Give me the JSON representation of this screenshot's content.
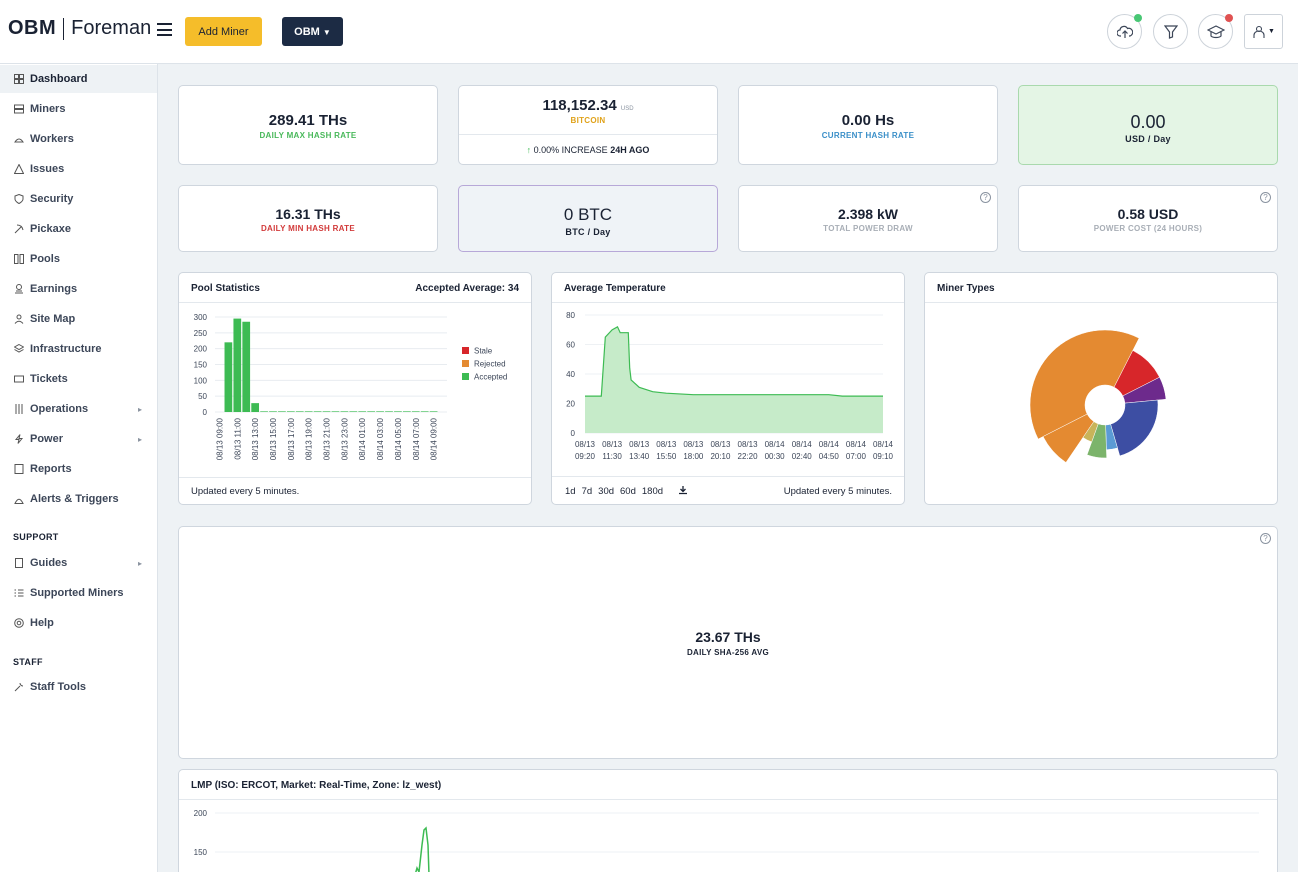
{
  "header": {
    "logo_left": "OBM",
    "logo_right": "Foreman",
    "add_miner": "Add Miner",
    "org_button": "OBM"
  },
  "colors": {
    "accent_yellow": "#f5bd2a",
    "navy": "#1c2b44",
    "green": "#3dbb53",
    "orange": "#e48a31",
    "red": "#d7262a",
    "purple": "#6d2a8c",
    "blue": "#3d4ea3"
  },
  "sidebar": {
    "items": [
      {
        "label": "Dashboard",
        "icon": "dashboard-icon"
      },
      {
        "label": "Miners",
        "icon": "server-icon"
      },
      {
        "label": "Workers",
        "icon": "workers-icon"
      },
      {
        "label": "Issues",
        "icon": "warning-icon"
      },
      {
        "label": "Security",
        "icon": "shield-icon"
      },
      {
        "label": "Pickaxe",
        "icon": "pickaxe-icon"
      },
      {
        "label": "Pools",
        "icon": "pools-icon"
      },
      {
        "label": "Earnings",
        "icon": "coins-icon"
      },
      {
        "label": "Site Map",
        "icon": "sitemap-icon"
      },
      {
        "label": "Infrastructure",
        "icon": "layers-icon"
      },
      {
        "label": "Tickets",
        "icon": "ticket-icon"
      },
      {
        "label": "Operations",
        "icon": "sliders-icon"
      },
      {
        "label": "Power",
        "icon": "bolt-icon"
      },
      {
        "label": "Reports",
        "icon": "report-icon"
      },
      {
        "label": "Alerts & Triggers",
        "icon": "alerts-icon"
      }
    ],
    "support_heading": "SUPPORT",
    "support_items": [
      {
        "label": "Guides",
        "icon": "book-icon"
      },
      {
        "label": "Supported Miners",
        "icon": "checklist-icon"
      },
      {
        "label": "Help",
        "icon": "lifebuoy-icon"
      }
    ],
    "staff_heading": "STAFF",
    "staff_items": [
      {
        "label": "Staff Tools",
        "icon": "tools-icon"
      }
    ]
  },
  "stats": {
    "max_hash": {
      "value": "289.41 THs",
      "label": "DAILY MAX HASH RATE"
    },
    "bitcoin": {
      "value": "118,152.34",
      "unit": "USD",
      "label": "BITCOIN",
      "change": "0.00% INCREASE",
      "period": "24H AGO"
    },
    "current_hash": {
      "value": "0.00 Hs",
      "label": "CURRENT HASH RATE"
    },
    "usd_day": {
      "value": "0.00",
      "label": "USD / Day"
    },
    "min_hash": {
      "value": "16.31 THs",
      "label": "DAILY MIN HASH RATE"
    },
    "btc_day": {
      "value": "0 BTC",
      "label": "BTC / Day"
    },
    "power_draw": {
      "value": "2.398 kW",
      "label": "TOTAL POWER DRAW"
    },
    "power_cost": {
      "value": "0.58 USD",
      "label": "POWER COST (24 HOURS)"
    }
  },
  "pool_panel": {
    "title": "Pool Statistics",
    "accepted_avg": "Accepted Average: 34",
    "footer": "Updated every 5 minutes.",
    "legend": [
      "Stale",
      "Rejected",
      "Accepted"
    ]
  },
  "temp_panel": {
    "title": "Average Temperature",
    "ranges": [
      "1d",
      "7d",
      "30d",
      "60d",
      "180d"
    ],
    "footer": "Updated every 5 minutes."
  },
  "miner_panel": {
    "title": "Miner Types"
  },
  "sha_panel": {
    "value": "23.67 THs",
    "label": "DAILY SHA-256 AVG"
  },
  "lmp_panel": {
    "title": "LMP (ISO: ERCOT, Market: Real-Time, Zone: lz_west)"
  },
  "chart_data": [
    {
      "type": "bar",
      "title": "Pool Statistics",
      "categories": [
        "08/13 09:00",
        "08/13 10:00",
        "08/13 11:00",
        "08/13 12:00",
        "08/13 13:00",
        "08/13 14:00",
        "08/13 15:00",
        "08/13 16:00",
        "08/13 17:00",
        "08/13 18:00",
        "08/13 19:00",
        "08/13 20:00",
        "08/13 21:00",
        "08/13 22:00",
        "08/13 23:00",
        "08/14 00:00",
        "08/14 01:00",
        "08/14 02:00",
        "08/14 03:00",
        "08/14 04:00",
        "08/14 05:00",
        "08/14 06:00",
        "08/14 07:00",
        "08/14 08:00",
        "08/14 09:00",
        "08/14 10:00"
      ],
      "tick_labels": [
        "08/13 09:00",
        "08/13 11:00",
        "08/13 13:00",
        "08/13 15:00",
        "08/13 17:00",
        "08/13 19:00",
        "08/13 21:00",
        "08/13 23:00",
        "08/14 01:00",
        "08/14 03:00",
        "08/14 05:00",
        "08/14 07:00",
        "08/14 09:00"
      ],
      "series": [
        {
          "name": "Accepted",
          "values": [
            0,
            220,
            295,
            285,
            28,
            2,
            2,
            2,
            2,
            2,
            2,
            2,
            2,
            2,
            2,
            2,
            2,
            2,
            2,
            2,
            2,
            2,
            2,
            2,
            2,
            0
          ]
        },
        {
          "name": "Rejected",
          "values": [
            0,
            0,
            0,
            0,
            0,
            0,
            0,
            0,
            0,
            0,
            0,
            0,
            0,
            0,
            0,
            0,
            0,
            0,
            0,
            0,
            0,
            0,
            0,
            0,
            0,
            0
          ]
        },
        {
          "name": "Stale",
          "values": [
            0,
            0,
            0,
            0,
            0,
            0,
            0,
            0,
            0,
            0,
            0,
            0,
            0,
            0,
            0,
            0,
            0,
            0,
            0,
            0,
            0,
            0,
            0,
            0,
            0,
            0
          ]
        }
      ],
      "y_ticks": [
        0,
        50,
        100,
        150,
        200,
        250,
        300
      ],
      "ylim": [
        0,
        300
      ],
      "legend": "right"
    },
    {
      "type": "area",
      "title": "Average Temperature",
      "x_labels": [
        [
          "08/13",
          "09:20"
        ],
        [
          "08/13",
          "11:30"
        ],
        [
          "08/13",
          "13:40"
        ],
        [
          "08/13",
          "15:50"
        ],
        [
          "08/13",
          "18:00"
        ],
        [
          "08/13",
          "20:10"
        ],
        [
          "08/13",
          "22:20"
        ],
        [
          "08/14",
          "00:30"
        ],
        [
          "08/14",
          "02:40"
        ],
        [
          "08/14",
          "04:50"
        ],
        [
          "08/14",
          "07:00"
        ],
        [
          "08/14",
          "09:10"
        ]
      ],
      "x": [
        0,
        0.5,
        0.6,
        0.75,
        1.0,
        1.2,
        1.3,
        1.5,
        1.6,
        1.65,
        1.7,
        2.0,
        2.5,
        3.0,
        4.0,
        5.0,
        6.0,
        7.0,
        8.0,
        9.0,
        9.5,
        10.0,
        11.0
      ],
      "y": [
        25,
        25,
        25,
        65,
        70,
        72,
        68,
        68,
        68,
        44,
        36,
        31,
        28,
        27,
        26,
        26,
        26,
        26,
        26,
        26,
        25,
        25,
        25
      ],
      "y_ticks": [
        0,
        20,
        40,
        60,
        80
      ],
      "ylim": [
        0,
        80
      ]
    },
    {
      "type": "pie",
      "title": "Miner Types",
      "slices": [
        {
          "value": 40,
          "color": "#e48a31",
          "radius": 1.0
        },
        {
          "value": 10,
          "color": "#d7262a",
          "radius": 0.75
        },
        {
          "value": 6,
          "color": "#6d2a8c",
          "radius": 0.75
        },
        {
          "value": 22,
          "color": "#3d4ea3",
          "radius": 0.6
        },
        {
          "value": 4,
          "color": "#5b9bd5",
          "radius": 0.45
        },
        {
          "value": 6,
          "color": "#7cb46b",
          "radius": 0.6
        },
        {
          "value": 4,
          "color": "#c9b45a",
          "radius": 0.35
        },
        {
          "value": 8,
          "color": "#e48a31",
          "radius": 0.9
        }
      ]
    },
    {
      "type": "line",
      "title": "LMP (ISO: ERCOT, Market: Real-Time, Zone: lz_west)",
      "y_ticks": [
        150,
        200
      ]
    }
  ]
}
